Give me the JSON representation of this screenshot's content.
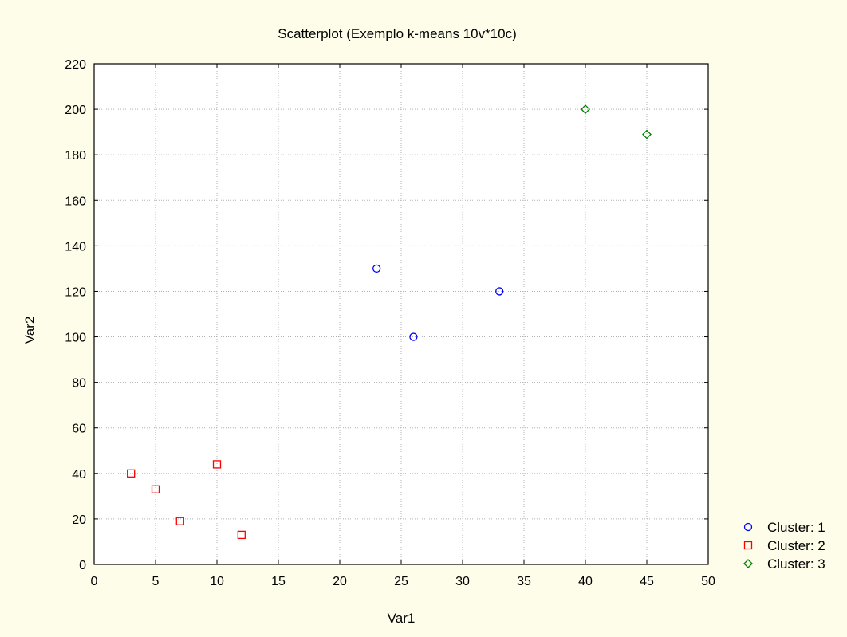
{
  "chart_data": {
    "type": "scatter",
    "title": "Scatterplot (Exemplo k-means 10v*10c)",
    "xlabel": "Var1",
    "ylabel": "Var2",
    "xlim": [
      0,
      50
    ],
    "ylim": [
      0,
      220
    ],
    "xticks": [
      0,
      5,
      10,
      15,
      20,
      25,
      30,
      35,
      40,
      45,
      50
    ],
    "yticks": [
      0,
      20,
      40,
      60,
      80,
      100,
      120,
      140,
      160,
      180,
      200,
      220
    ],
    "grid": true,
    "legend_position": "bottom-right outside",
    "series": [
      {
        "name": "Cluster: 1",
        "marker": "circle",
        "color": "#0000ff",
        "points": [
          [
            23,
            130
          ],
          [
            26,
            100
          ],
          [
            33,
            120
          ]
        ]
      },
      {
        "name": "Cluster: 2",
        "marker": "square",
        "color": "#ff0000",
        "points": [
          [
            3,
            40
          ],
          [
            5,
            33
          ],
          [
            7,
            19
          ],
          [
            10,
            44
          ],
          [
            12,
            13
          ]
        ]
      },
      {
        "name": "Cluster: 3",
        "marker": "diamond",
        "color": "#008000",
        "points": [
          [
            40,
            200
          ],
          [
            45,
            189
          ]
        ]
      }
    ]
  }
}
